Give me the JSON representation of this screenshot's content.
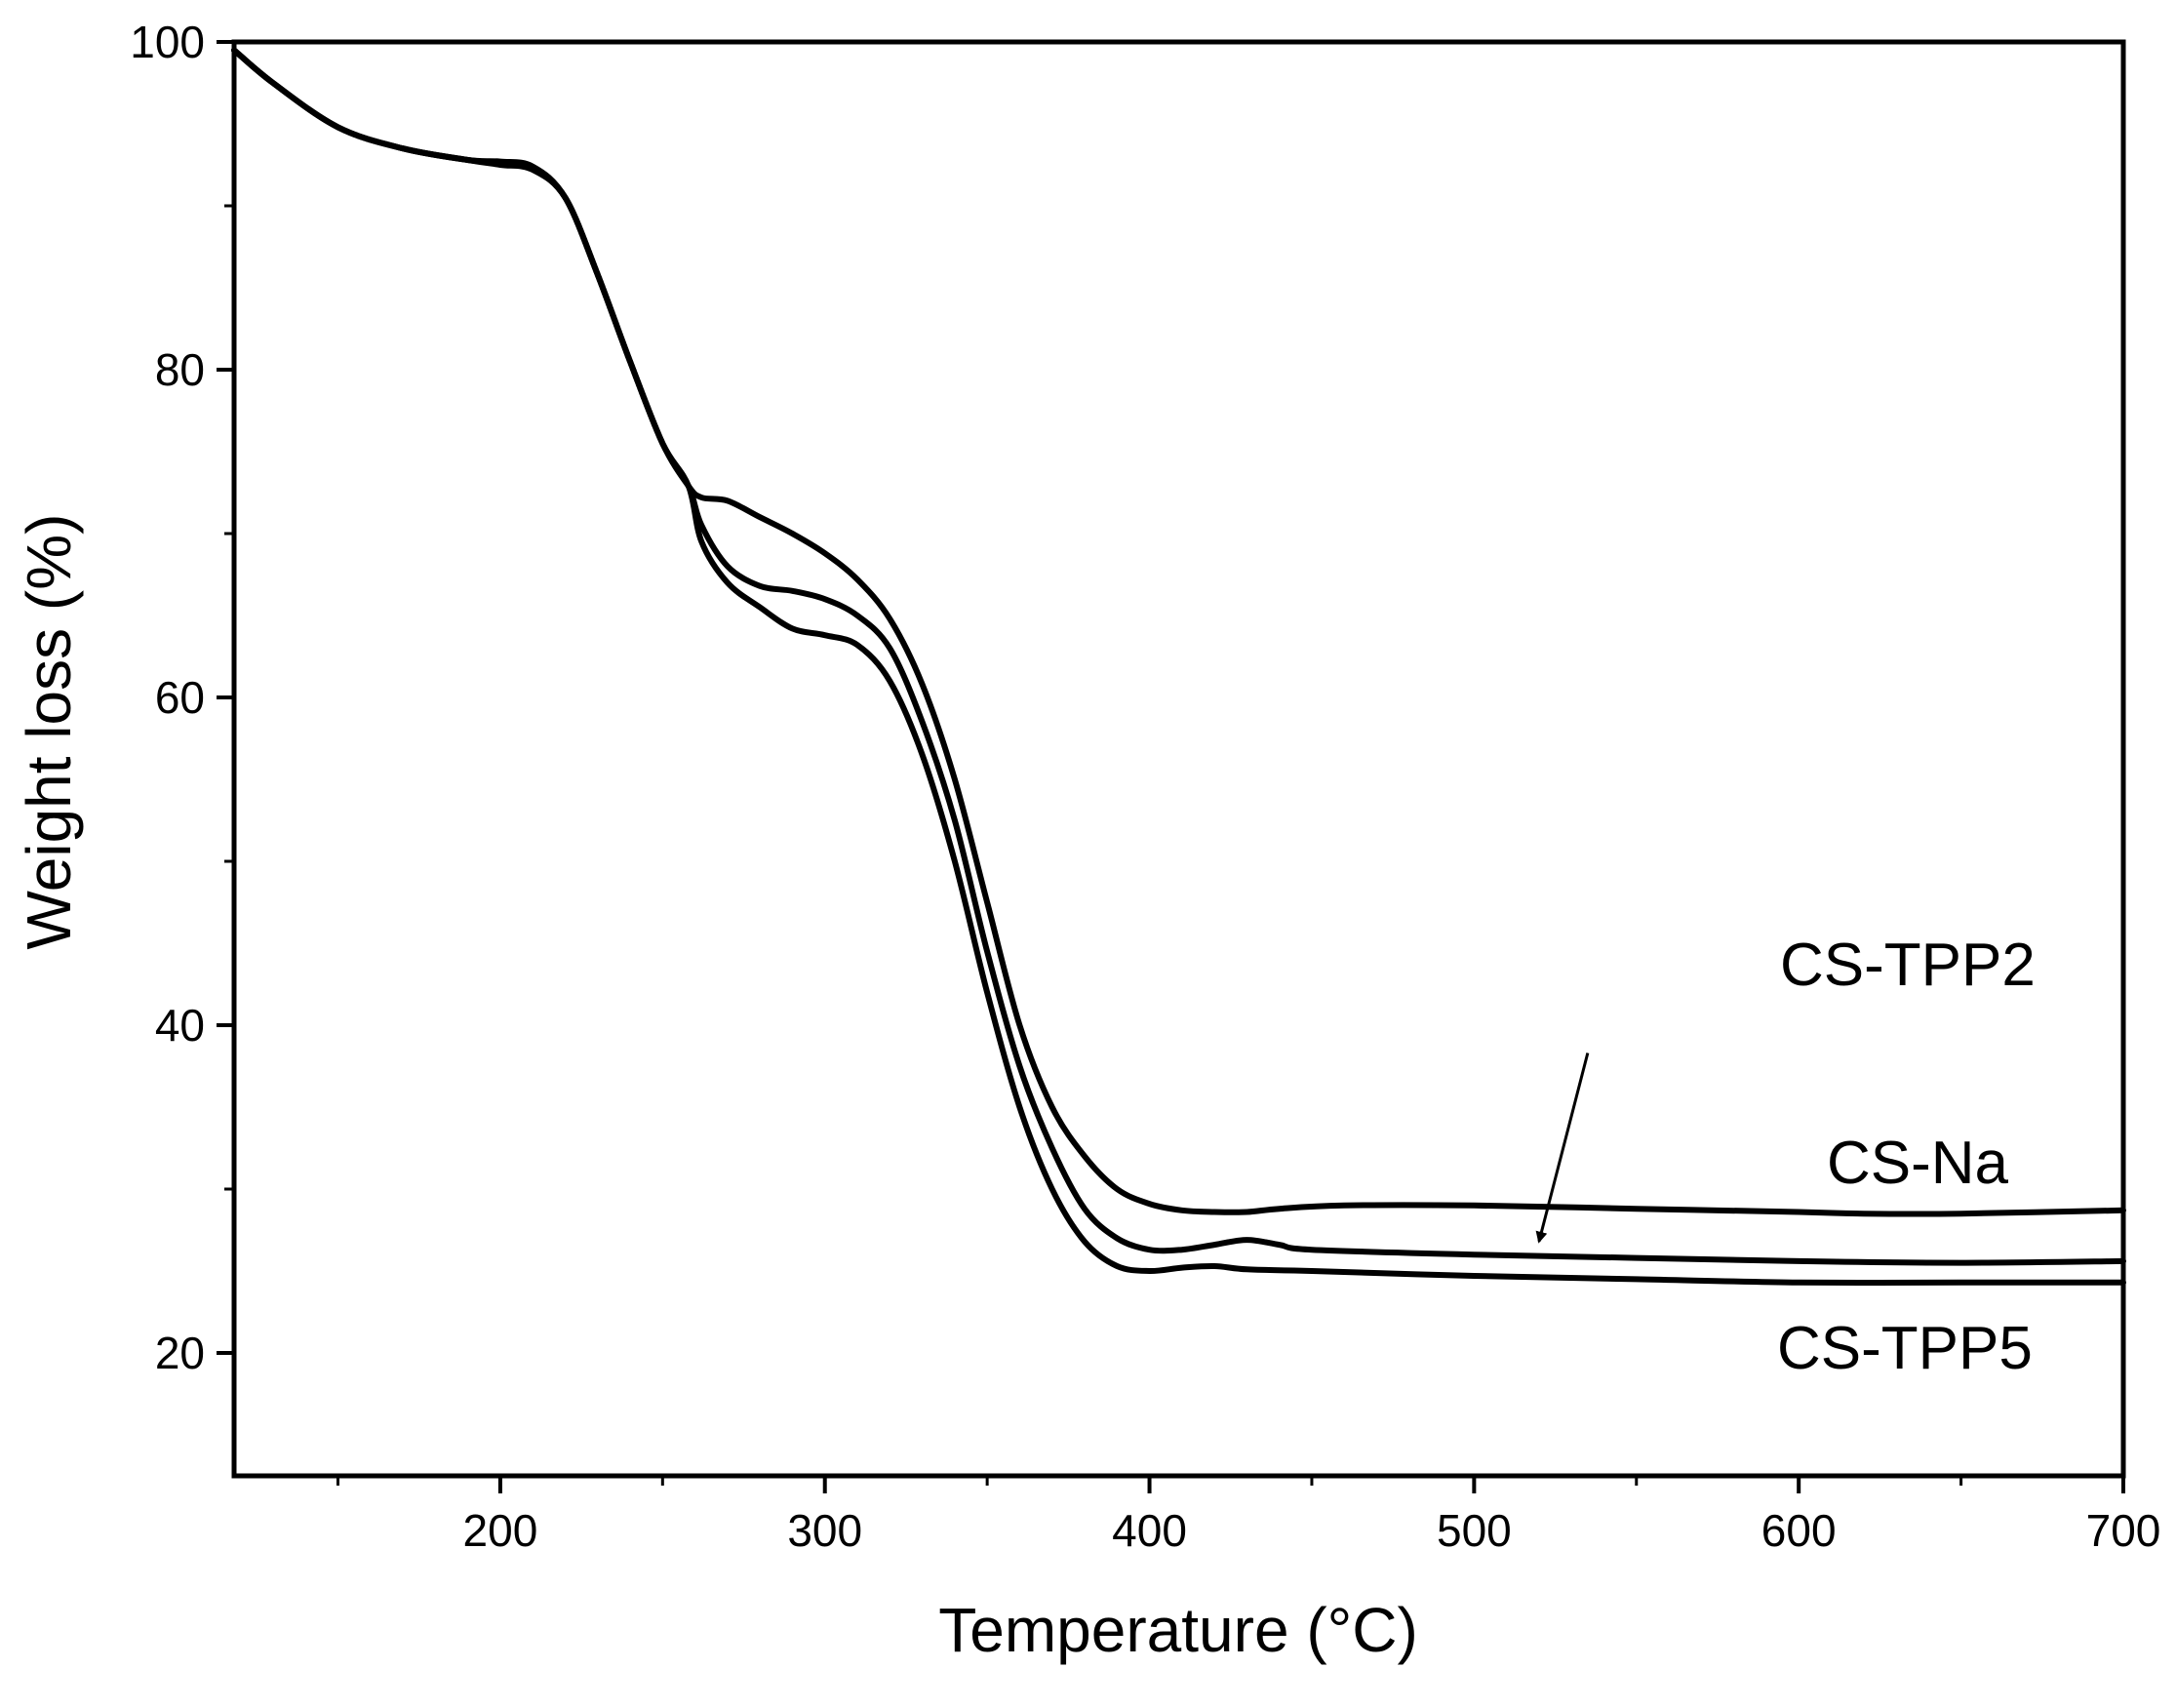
{
  "chart_data": {
    "type": "line",
    "title": "",
    "xlabel": "Temperature (°C)",
    "ylabel": "Weight loss (%)",
    "xlim": [
      118,
      700
    ],
    "ylim": [
      12.5,
      100
    ],
    "x_ticks": [
      200,
      300,
      400,
      500,
      600,
      700
    ],
    "x_minor_ticks": [
      150,
      250,
      350,
      450,
      550,
      650
    ],
    "y_ticks": [
      20,
      40,
      60,
      80,
      100
    ],
    "y_minor_ticks": [
      30,
      50,
      70,
      90
    ],
    "grid": false,
    "line_color": "#000000",
    "series": [
      {
        "name": "CS-Na",
        "x": [
          118,
          130,
          150,
          170,
          190,
          200,
          210,
          220,
          230,
          240,
          250,
          258,
          262,
          270,
          280,
          290,
          300,
          310,
          320,
          330,
          340,
          350,
          360,
          370,
          380,
          390,
          400,
          410,
          420,
          430,
          440,
          460,
          500,
          550,
          600,
          620,
          650,
          700
        ],
        "y": [
          99.5,
          97.5,
          94.8,
          93.5,
          92.8,
          92.7,
          92.4,
          90.5,
          85.8,
          80.5,
          75.5,
          72.9,
          72.2,
          72.0,
          71.0,
          70.0,
          68.8,
          67.2,
          64.8,
          60.8,
          55.0,
          47.5,
          40.0,
          35.0,
          32.0,
          30.0,
          29.1,
          28.7,
          28.6,
          28.6,
          28.8,
          29.0,
          29.0,
          28.8,
          28.6,
          28.5,
          28.5,
          28.7
        ]
      },
      {
        "name": "CS-TPP2",
        "x": [
          118,
          130,
          150,
          170,
          190,
          200,
          210,
          220,
          230,
          240,
          250,
          258,
          262,
          270,
          280,
          290,
          300,
          310,
          320,
          330,
          340,
          350,
          360,
          370,
          380,
          390,
          400,
          410,
          420,
          430,
          440,
          450,
          500,
          550,
          600,
          650,
          700
        ],
        "y": [
          99.5,
          97.5,
          94.8,
          93.5,
          92.8,
          92.6,
          92.2,
          90.5,
          85.8,
          80.5,
          75.5,
          72.9,
          70.5,
          68.0,
          66.8,
          66.5,
          66.0,
          65.0,
          63.0,
          58.5,
          52.5,
          44.5,
          37.5,
          32.5,
          28.8,
          27.0,
          26.3,
          26.3,
          26.6,
          26.9,
          26.6,
          26.3,
          26.0,
          25.8,
          25.6,
          25.5,
          25.6
        ]
      },
      {
        "name": "CS-TPP5",
        "x": [
          118,
          130,
          150,
          170,
          190,
          200,
          210,
          220,
          230,
          240,
          250,
          258,
          262,
          270,
          280,
          290,
          300,
          310,
          320,
          330,
          340,
          350,
          360,
          370,
          380,
          390,
          400,
          410,
          420,
          430,
          450,
          500,
          550,
          600,
          650,
          700
        ],
        "y": [
          99.5,
          97.5,
          94.8,
          93.5,
          92.8,
          92.5,
          92.2,
          90.5,
          85.8,
          80.5,
          75.5,
          72.9,
          69.5,
          67.0,
          65.5,
          64.2,
          63.8,
          63.2,
          61.0,
          56.5,
          50.0,
          42.0,
          35.0,
          30.0,
          26.8,
          25.3,
          25.0,
          25.2,
          25.3,
          25.1,
          25.0,
          24.7,
          24.5,
          24.3,
          24.3,
          24.3
        ]
      }
    ],
    "annotations": [
      {
        "text": "CS-TPP2",
        "target_series": "CS-TPP2",
        "arrow_from": [
          535,
          38.3
        ],
        "arrow_to": [
          520,
          26.8
        ]
      },
      {
        "text": "CS-Na",
        "target_series": "CS-Na",
        "near": [
          520,
          31
        ]
      },
      {
        "text": "CS-TPP5",
        "target_series": "CS-TPP5",
        "near": [
          520,
          21.5
        ]
      }
    ]
  }
}
